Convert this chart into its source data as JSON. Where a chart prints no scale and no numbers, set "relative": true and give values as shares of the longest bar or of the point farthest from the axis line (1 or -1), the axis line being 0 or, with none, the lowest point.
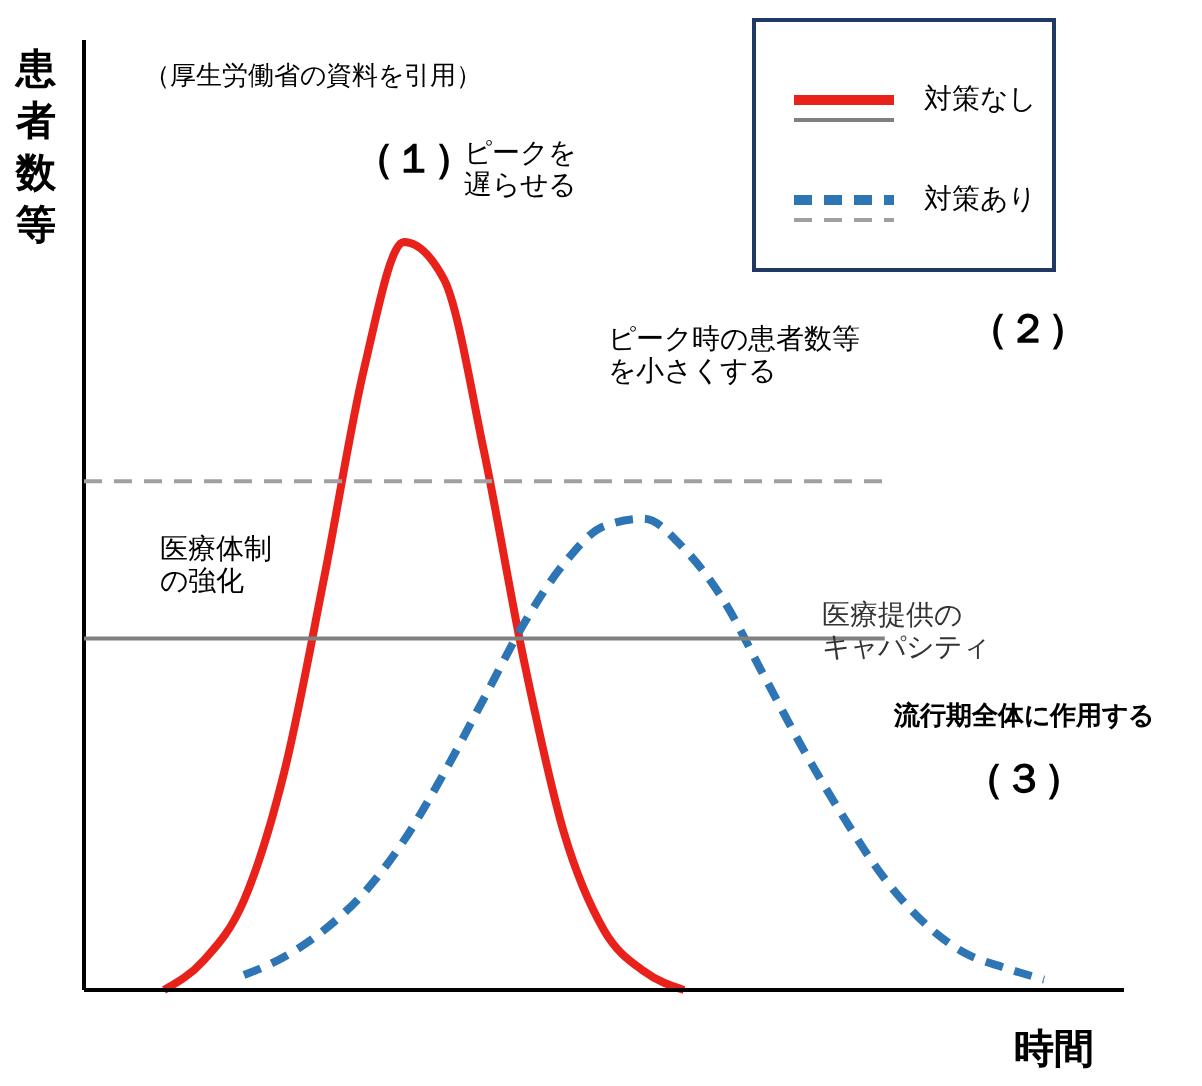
{
  "chart_data": {
    "type": "line",
    "relative": true,
    "xlabel": "時間",
    "ylabel": "患者数等",
    "categories": [
      null,
      null,
      null,
      null,
      null,
      null,
      null,
      null,
      null,
      null,
      null,
      null,
      null,
      null,
      null,
      null,
      null,
      null,
      null,
      null,
      null,
      null,
      null,
      null,
      null,
      null,
      null
    ],
    "series": [
      {
        "name": "対策なし",
        "color": "#e8221b",
        "line_style": "solid",
        "values": [
          null,
          null,
          0,
          0.04,
          0.12,
          0.29,
          0.55,
          0.83,
          1,
          0.95,
          0.72,
          0.44,
          0.21,
          0.08,
          0.025,
          0,
          null,
          null,
          null,
          null,
          null,
          null,
          null,
          null,
          null,
          null,
          null
        ]
      },
      {
        "name": "対策あり",
        "color": "#2e75b6",
        "line_style": "dashed",
        "values": [
          null,
          null,
          null,
          null,
          0.02,
          0.044,
          0.08,
          0.13,
          0.2,
          0.29,
          0.39,
          0.49,
          0.57,
          0.62,
          0.63,
          0.59,
          0.52,
          0.42,
          0.32,
          0.23,
          0.15,
          0.09,
          0.05,
          0.03,
          0.014,
          null,
          null
        ]
      }
    ],
    "ref_lines": [
      {
        "axis": "y",
        "value": 0.47,
        "label": "医療提供のキャパシティ",
        "color": "#808080",
        "line_style": "solid"
      },
      {
        "axis": "y",
        "value": 0.68,
        "label": null,
        "color": "#a0a0a0",
        "line_style": "dashed"
      }
    ],
    "annotations": [
      "（厚生労働省の資料を引用）",
      "（１）",
      "ピークを遅らせる",
      "ピーク時の患者数等を小さくする",
      "（２）",
      "医療体制の強化",
      "流行期全体に作用する",
      "（３）"
    ],
    "legend": "top right"
  }
}
